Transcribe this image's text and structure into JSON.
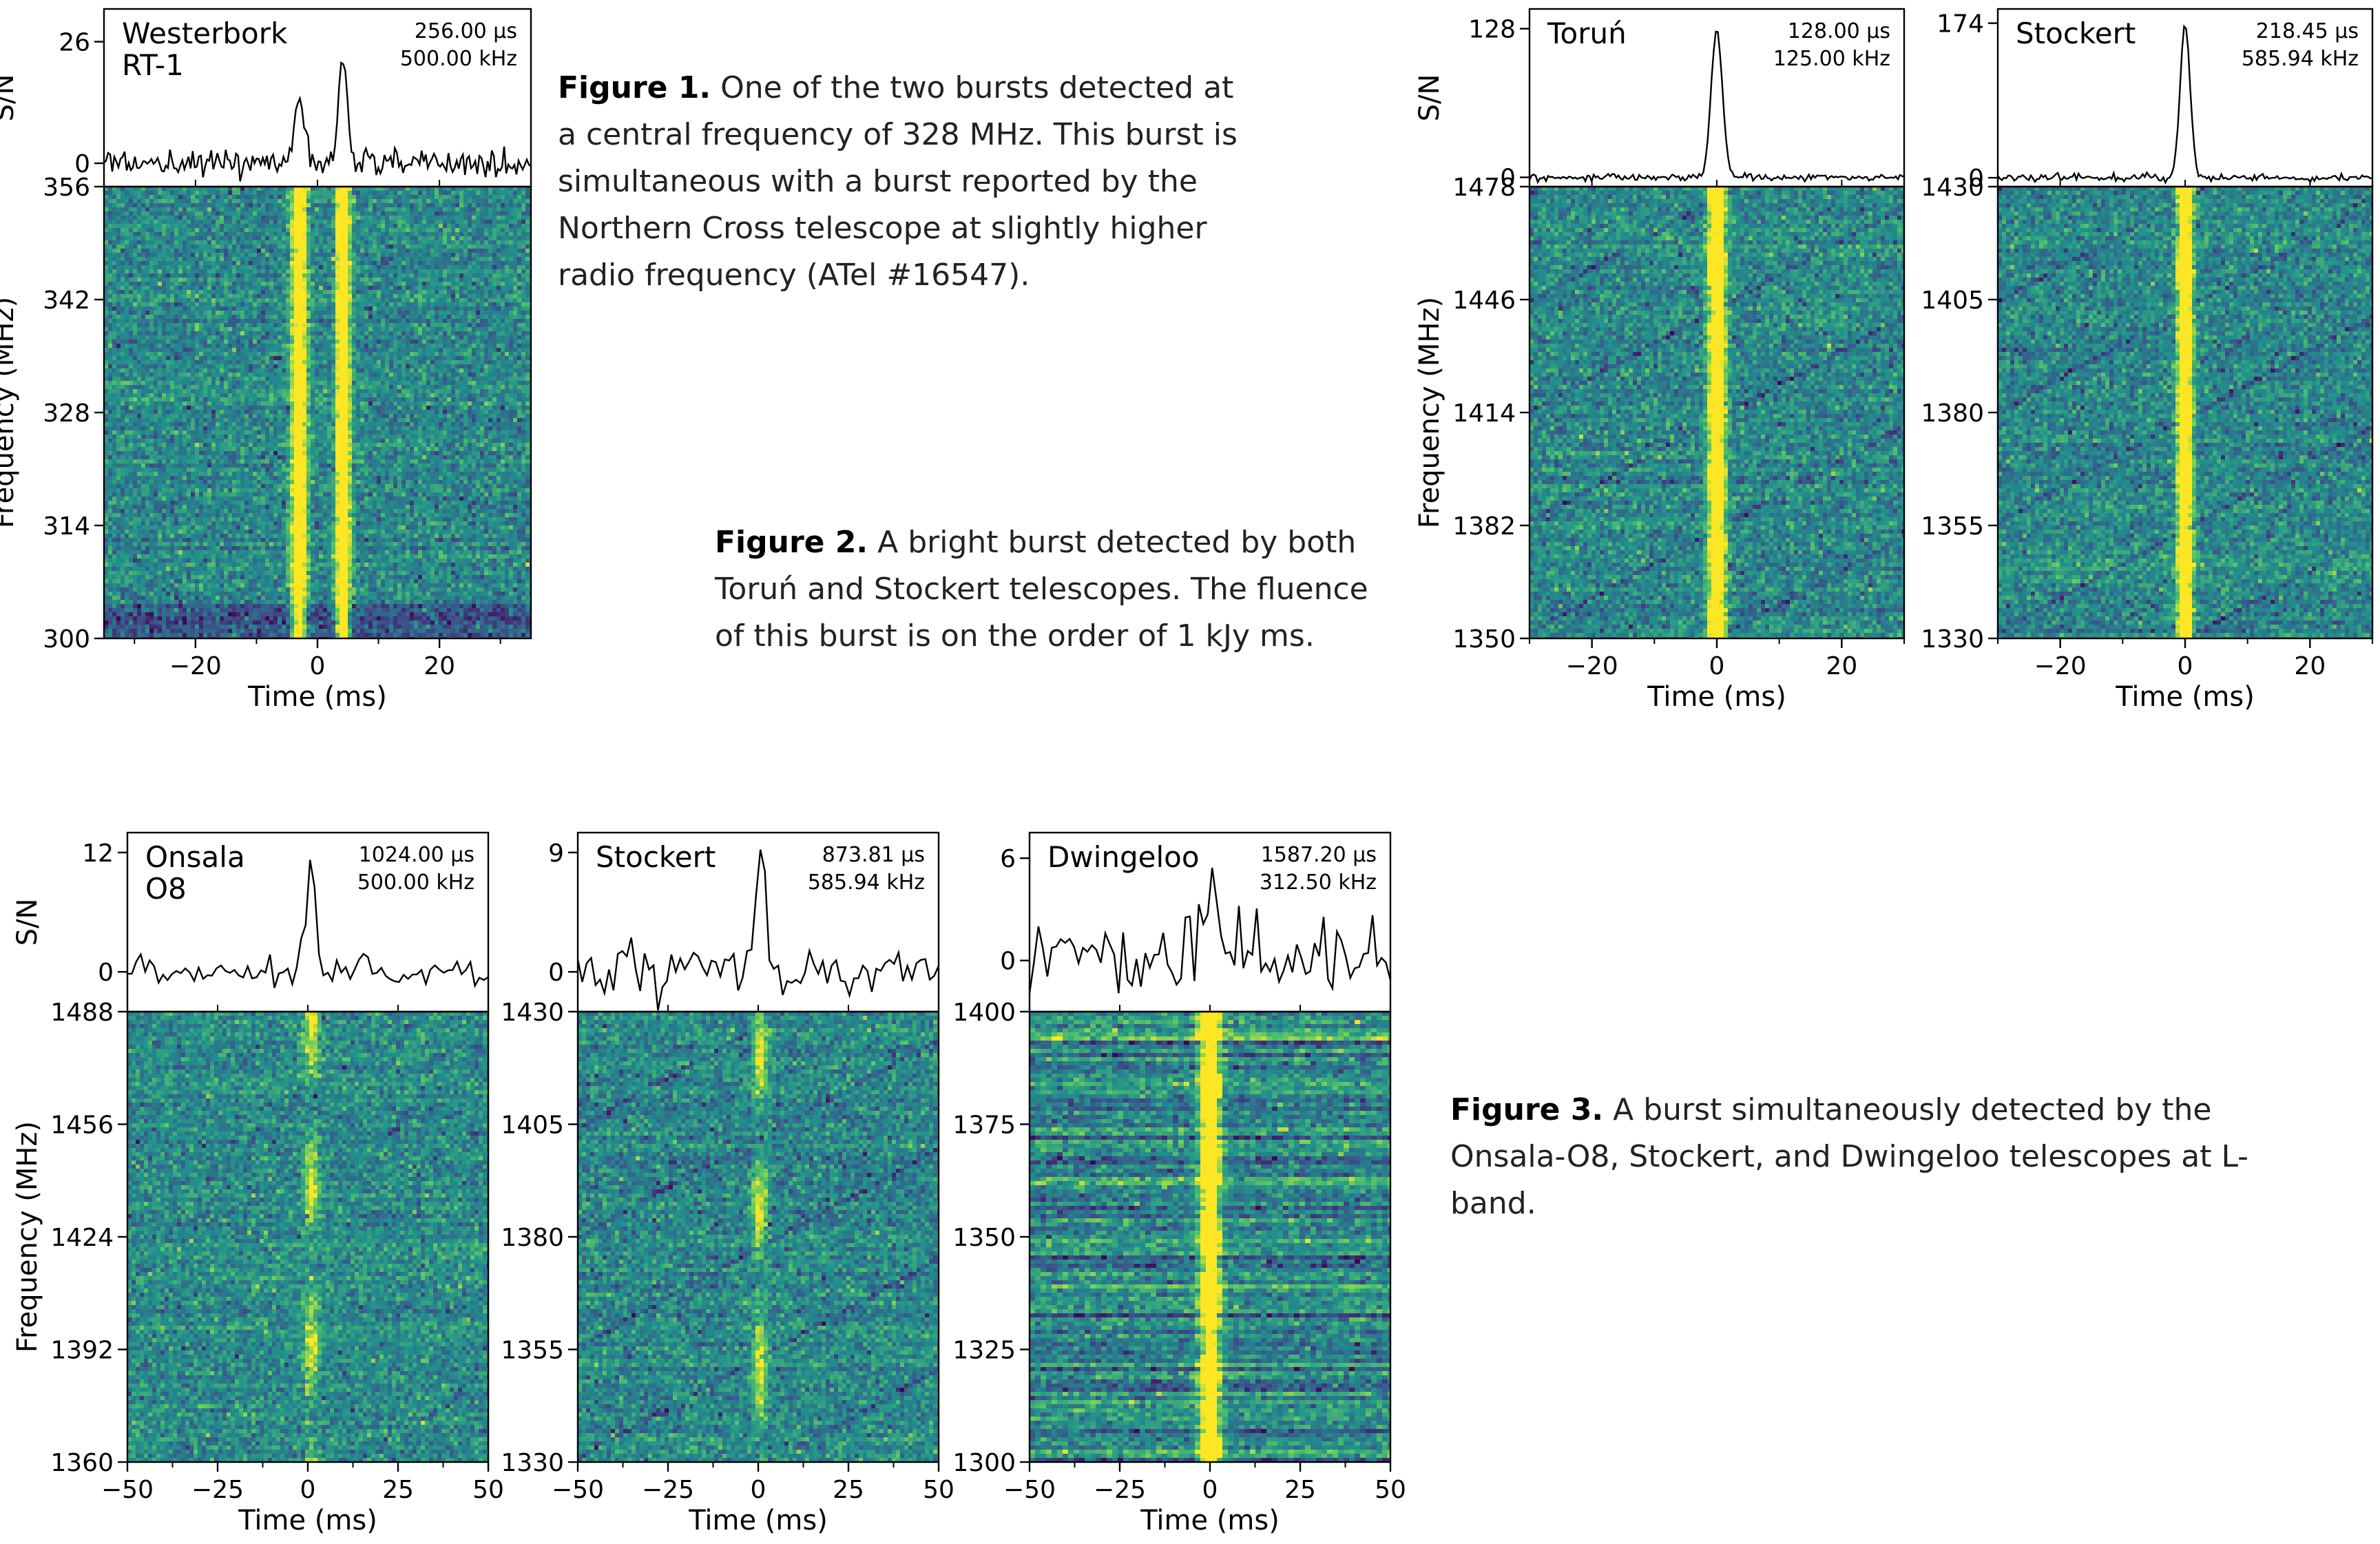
{
  "captions": [
    {
      "label": "Figure 1.",
      "text": " One of the two bursts detected at a central frequency of 328 MHz. This burst is simultaneous with a burst reported by the Northern Cross telescope at slightly higher radio frequency (ATel #16547)."
    },
    {
      "label": "Figure 2.",
      "text": " A bright burst detected by both Toruń and Stockert telescopes. The fluence of this burst is on the order of 1 kJy ms."
    },
    {
      "label": "Figure 3.",
      "text": " A burst simultaneously detected by the Onsala-O8, Stockert, and Dwingeloo telescopes at L-band."
    }
  ],
  "colors": {
    "frame": "#000000",
    "trace": "#000000",
    "viridis_low": "#440154",
    "viridis_mid": "#21918c",
    "viridis_high": "#fde725"
  },
  "chart_data": [
    {
      "type": "heatmap",
      "panel": "westerbork",
      "telescope_lines": [
        "Westerbork",
        "RT-1"
      ],
      "time_resolution": "256.00 μs",
      "freq_resolution": "500.00 kHz",
      "xlabel": "Time (ms)",
      "ylabel": "Frequency (MHz)",
      "sn_label": "S/N",
      "xlim": [
        -35,
        35
      ],
      "ylim": [
        300,
        356
      ],
      "x_ticks": [
        "−20",
        "0",
        "20"
      ],
      "x_tick_values": [
        -20,
        0,
        20
      ],
      "y_ticks": [
        "300",
        "314",
        "328",
        "342",
        "356"
      ],
      "y_tick_values": [
        300,
        314,
        328,
        342,
        356
      ],
      "sn_ticks": [
        "0",
        "26"
      ],
      "sn_tick_values": [
        0,
        26
      ],
      "sn_range": [
        -5,
        33
      ],
      "bursts": [
        {
          "t": -3.0,
          "peak": 14,
          "width": 0.9
        },
        {
          "t": 4.2,
          "peak": 22,
          "width": 0.7
        }
      ],
      "noise": 1.4,
      "features": [
        "low_band_dark"
      ]
    },
    {
      "type": "heatmap",
      "panel": "torun",
      "telescope_lines": [
        "Toruń"
      ],
      "time_resolution": "128.00 μs",
      "freq_resolution": "125.00 kHz",
      "xlabel": "Time (ms)",
      "ylabel": "Frequency (MHz)",
      "sn_label": "S/N",
      "xlim": [
        -30,
        30
      ],
      "ylim": [
        1350,
        1478
      ],
      "x_ticks": [
        "−20",
        "0",
        "20"
      ],
      "x_tick_values": [
        -20,
        0,
        20
      ],
      "y_ticks": [
        "1350",
        "1382",
        "1414",
        "1446",
        "1478"
      ],
      "y_tick_values": [
        1350,
        1382,
        1414,
        1446,
        1478
      ],
      "sn_ticks": [
        "0",
        "128"
      ],
      "sn_tick_values": [
        0,
        128
      ],
      "sn_range": [
        -8,
        145
      ],
      "bursts": [
        {
          "t": 0.0,
          "peak": 128,
          "width": 0.9
        }
      ],
      "noise": 1.5,
      "features": [
        "diagonal_lines"
      ]
    },
    {
      "type": "heatmap",
      "panel": "stockert-1",
      "telescope_lines": [
        "Stockert"
      ],
      "time_resolution": "218.45 μs",
      "freq_resolution": "585.94 kHz",
      "xlabel": "Time (ms)",
      "ylabel": "",
      "sn_label": "",
      "xlim": [
        -30,
        30
      ],
      "ylim": [
        1330,
        1430
      ],
      "x_ticks": [
        "−20",
        "0",
        "20"
      ],
      "x_tick_values": [
        -20,
        0,
        20
      ],
      "y_ticks": [
        "1330",
        "1355",
        "1380",
        "1405",
        "1430"
      ],
      "y_tick_values": [
        1330,
        1355,
        1380,
        1405,
        1430
      ],
      "sn_ticks": [
        "0",
        "174"
      ],
      "sn_tick_values": [
        0,
        174
      ],
      "sn_range": [
        -10,
        190
      ],
      "bursts": [
        {
          "t": 0.0,
          "peak": 174,
          "width": 0.8
        }
      ],
      "noise": 2.0,
      "features": [
        "diagonal_lines"
      ]
    },
    {
      "type": "heatmap",
      "panel": "onsala",
      "telescope_lines": [
        "Onsala",
        "O8"
      ],
      "time_resolution": "1024.00 μs",
      "freq_resolution": "500.00 kHz",
      "xlabel": "Time (ms)",
      "ylabel": "Frequency (MHz)",
      "sn_label": "S/N",
      "xlim": [
        -50,
        50
      ],
      "ylim": [
        1360,
        1488
      ],
      "x_ticks": [
        "−50",
        "−25",
        "0",
        "25",
        "50"
      ],
      "x_tick_values": [
        -50,
        -25,
        0,
        25,
        50
      ],
      "y_ticks": [
        "1360",
        "1392",
        "1424",
        "1456",
        "1488"
      ],
      "y_tick_values": [
        1360,
        1392,
        1424,
        1456,
        1488
      ],
      "sn_ticks": [
        "0",
        "12"
      ],
      "sn_tick_values": [
        0,
        12
      ],
      "sn_range": [
        -4,
        14
      ],
      "bursts": [
        {
          "t": 1.0,
          "peak": 11,
          "width": 1.4
        }
      ],
      "noise": 0.9,
      "features": [
        "faint_burst"
      ]
    },
    {
      "type": "heatmap",
      "panel": "stockert-2",
      "telescope_lines": [
        "Stockert"
      ],
      "time_resolution": "873.81 μs",
      "freq_resolution": "585.94 kHz",
      "xlabel": "Time (ms)",
      "ylabel": "",
      "sn_label": "",
      "xlim": [
        -50,
        50
      ],
      "ylim": [
        1330,
        1430
      ],
      "x_ticks": [
        "−50",
        "−25",
        "0",
        "25",
        "50"
      ],
      "x_tick_values": [
        -50,
        -25,
        0,
        25,
        50
      ],
      "y_ticks": [
        "1330",
        "1355",
        "1380",
        "1405",
        "1430"
      ],
      "y_tick_values": [
        1330,
        1355,
        1380,
        1405,
        1430
      ],
      "sn_ticks": [
        "0",
        "9"
      ],
      "sn_tick_values": [
        0,
        9
      ],
      "sn_range": [
        -3,
        10.5
      ],
      "bursts": [
        {
          "t": 0.5,
          "peak": 9,
          "width": 1.4
        }
      ],
      "noise": 0.8,
      "features": [
        "faint_burst",
        "diagonal_lines"
      ]
    },
    {
      "type": "heatmap",
      "panel": "dwingeloo",
      "telescope_lines": [
        "Dwingeloo"
      ],
      "time_resolution": "1587.20 μs",
      "freq_resolution": "312.50 kHz",
      "xlabel": "Time (ms)",
      "ylabel": "",
      "sn_label": "",
      "xlim": [
        -50,
        50
      ],
      "ylim": [
        1300,
        1400
      ],
      "x_ticks": [
        "−50",
        "−25",
        "0",
        "25",
        "50"
      ],
      "x_tick_values": [
        -50,
        -25,
        0,
        25,
        50
      ],
      "y_ticks": [
        "1300",
        "1325",
        "1350",
        "1375",
        "1400"
      ],
      "y_tick_values": [
        1300,
        1325,
        1350,
        1375,
        1400
      ],
      "sn_ticks": [
        "0",
        "6"
      ],
      "sn_tick_values": [
        0,
        6
      ],
      "sn_range": [
        -3,
        7.5
      ],
      "bursts": [
        {
          "t": 0.0,
          "peak": 4.3,
          "width": 1.8
        }
      ],
      "noise": 1.3,
      "features": [
        "horizontal_bands"
      ]
    }
  ]
}
